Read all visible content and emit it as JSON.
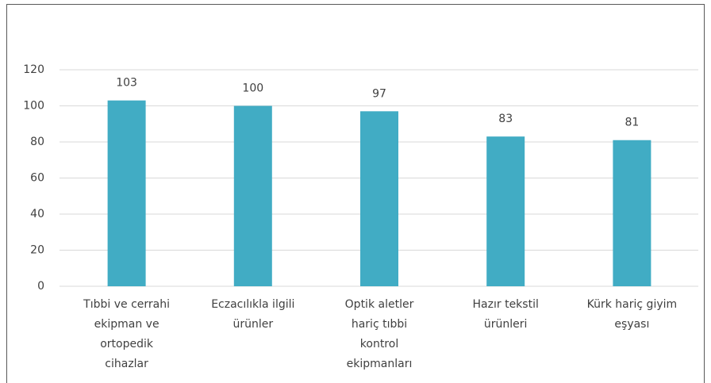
{
  "chart_data": {
    "type": "bar",
    "categories": [
      "Tıbbi ve cerrahi ekipman ve ortopedik cihazlar",
      "Eczacılıkla ilgili ürünler",
      "Optik aletler hariç tıbbi kontrol ekipmanları",
      "Hazır tekstil ürünleri",
      "Kürk hariç giyim eşyası"
    ],
    "values": [
      103,
      100,
      97,
      83,
      81
    ],
    "color": "#41acc4",
    "ylim": [
      0,
      120
    ],
    "yticks": [
      0,
      20,
      40,
      60,
      80,
      100,
      120
    ],
    "grid": true
  }
}
